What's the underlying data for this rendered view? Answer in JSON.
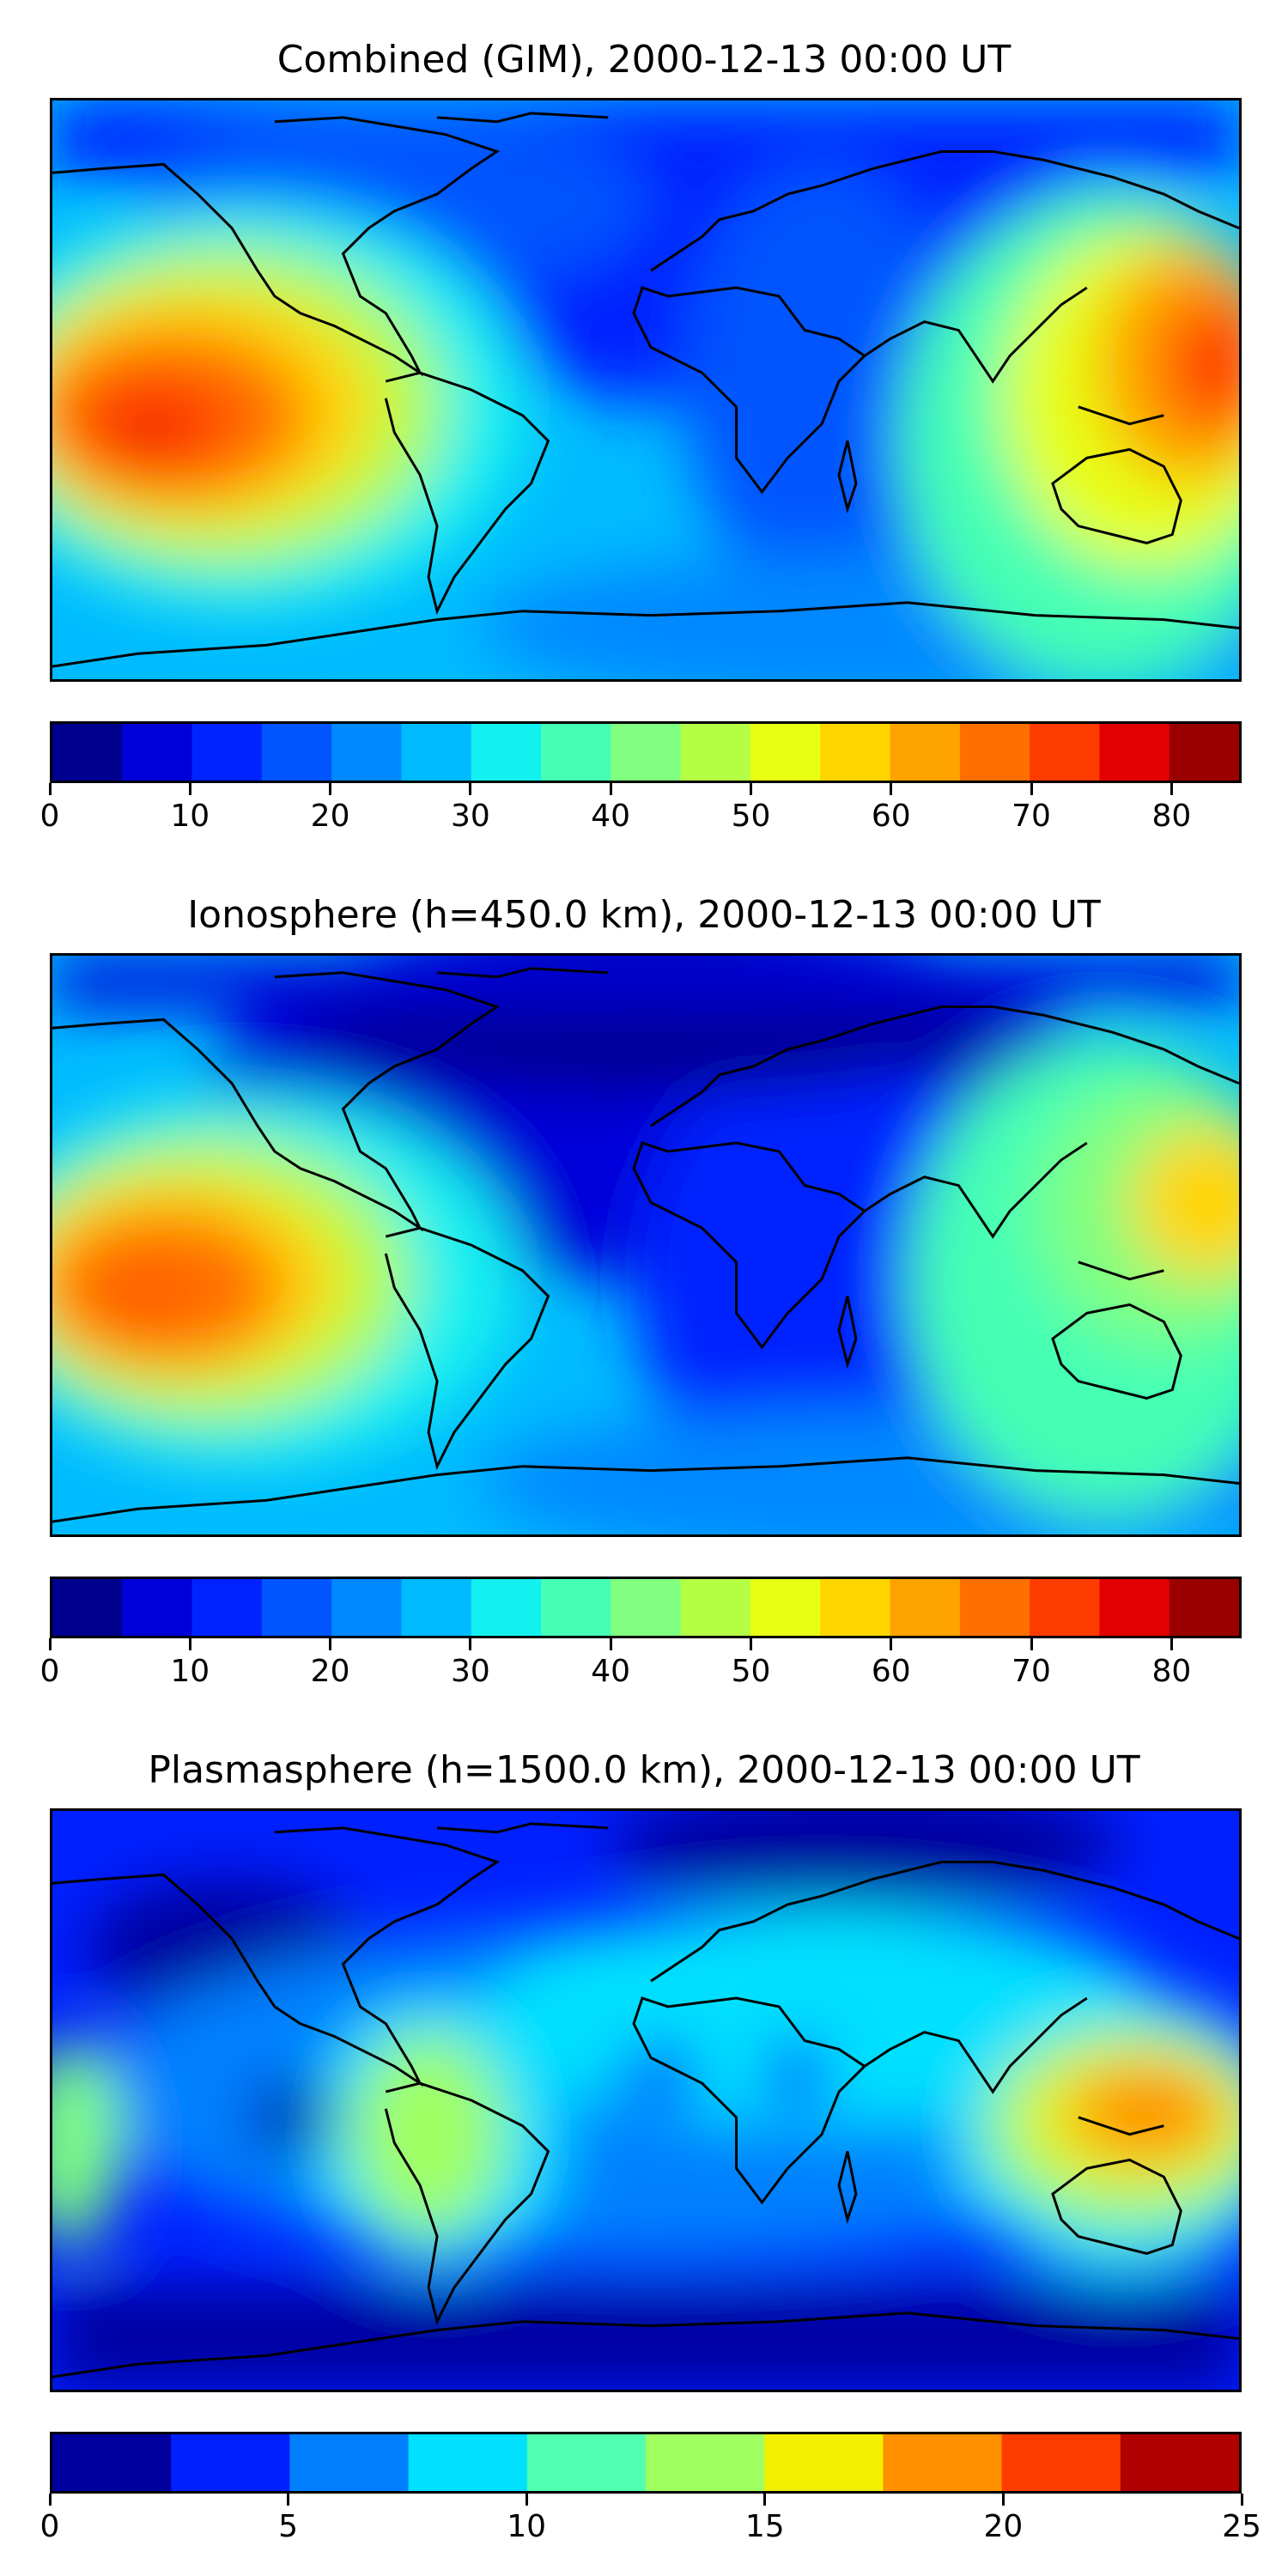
{
  "panels": [
    {
      "title": "Combined (GIM), 2000-12-13 00:00 UT",
      "colorbar": {
        "min": 0,
        "max": 85,
        "step": 5,
        "ticks": [
          "0",
          "10",
          "20",
          "30",
          "40",
          "50",
          "60",
          "70",
          "80"
        ],
        "tick_values": [
          0,
          10,
          20,
          30,
          40,
          50,
          60,
          70,
          80
        ],
        "colors": [
          "#00008f",
          "#0000d9",
          "#0022ff",
          "#0055ff",
          "#0088ff",
          "#00bbff",
          "#12f0f0",
          "#44ffb4",
          "#80ff80",
          "#b4ff44",
          "#e6ff12",
          "#ffd500",
          "#ffa300",
          "#ff6f00",
          "#ff3c00",
          "#e30000",
          "#9a0000"
        ]
      }
    },
    {
      "title": "Ionosphere  (h=450.0 km), 2000-12-13 00:00 UT",
      "colorbar": {
        "min": 0,
        "max": 85,
        "step": 5,
        "ticks": [
          "0",
          "10",
          "20",
          "30",
          "40",
          "50",
          "60",
          "70",
          "80"
        ],
        "tick_values": [
          0,
          10,
          20,
          30,
          40,
          50,
          60,
          70,
          80
        ],
        "colors": [
          "#00008f",
          "#0000d9",
          "#0022ff",
          "#0055ff",
          "#0088ff",
          "#00bbff",
          "#12f0f0",
          "#44ffb4",
          "#80ff80",
          "#b4ff44",
          "#e6ff12",
          "#ffd500",
          "#ffa300",
          "#ff6f00",
          "#ff3c00",
          "#e30000",
          "#9a0000"
        ]
      }
    },
    {
      "title": "Plasmasphere (h=1500.0 km), 2000-12-13 00:00 UT",
      "colorbar": {
        "min": 0,
        "max": 25,
        "step": 2.5,
        "ticks": [
          "0",
          "5",
          "10",
          "15",
          "20",
          "25"
        ],
        "tick_values": [
          0,
          5,
          10,
          15,
          20,
          25
        ],
        "colors": [
          "#00009f",
          "#0020ff",
          "#0080ff",
          "#00e0ff",
          "#50ffb0",
          "#a0ff60",
          "#f0f000",
          "#ff9000",
          "#ff3c00",
          "#b00000"
        ]
      }
    }
  ]
}
